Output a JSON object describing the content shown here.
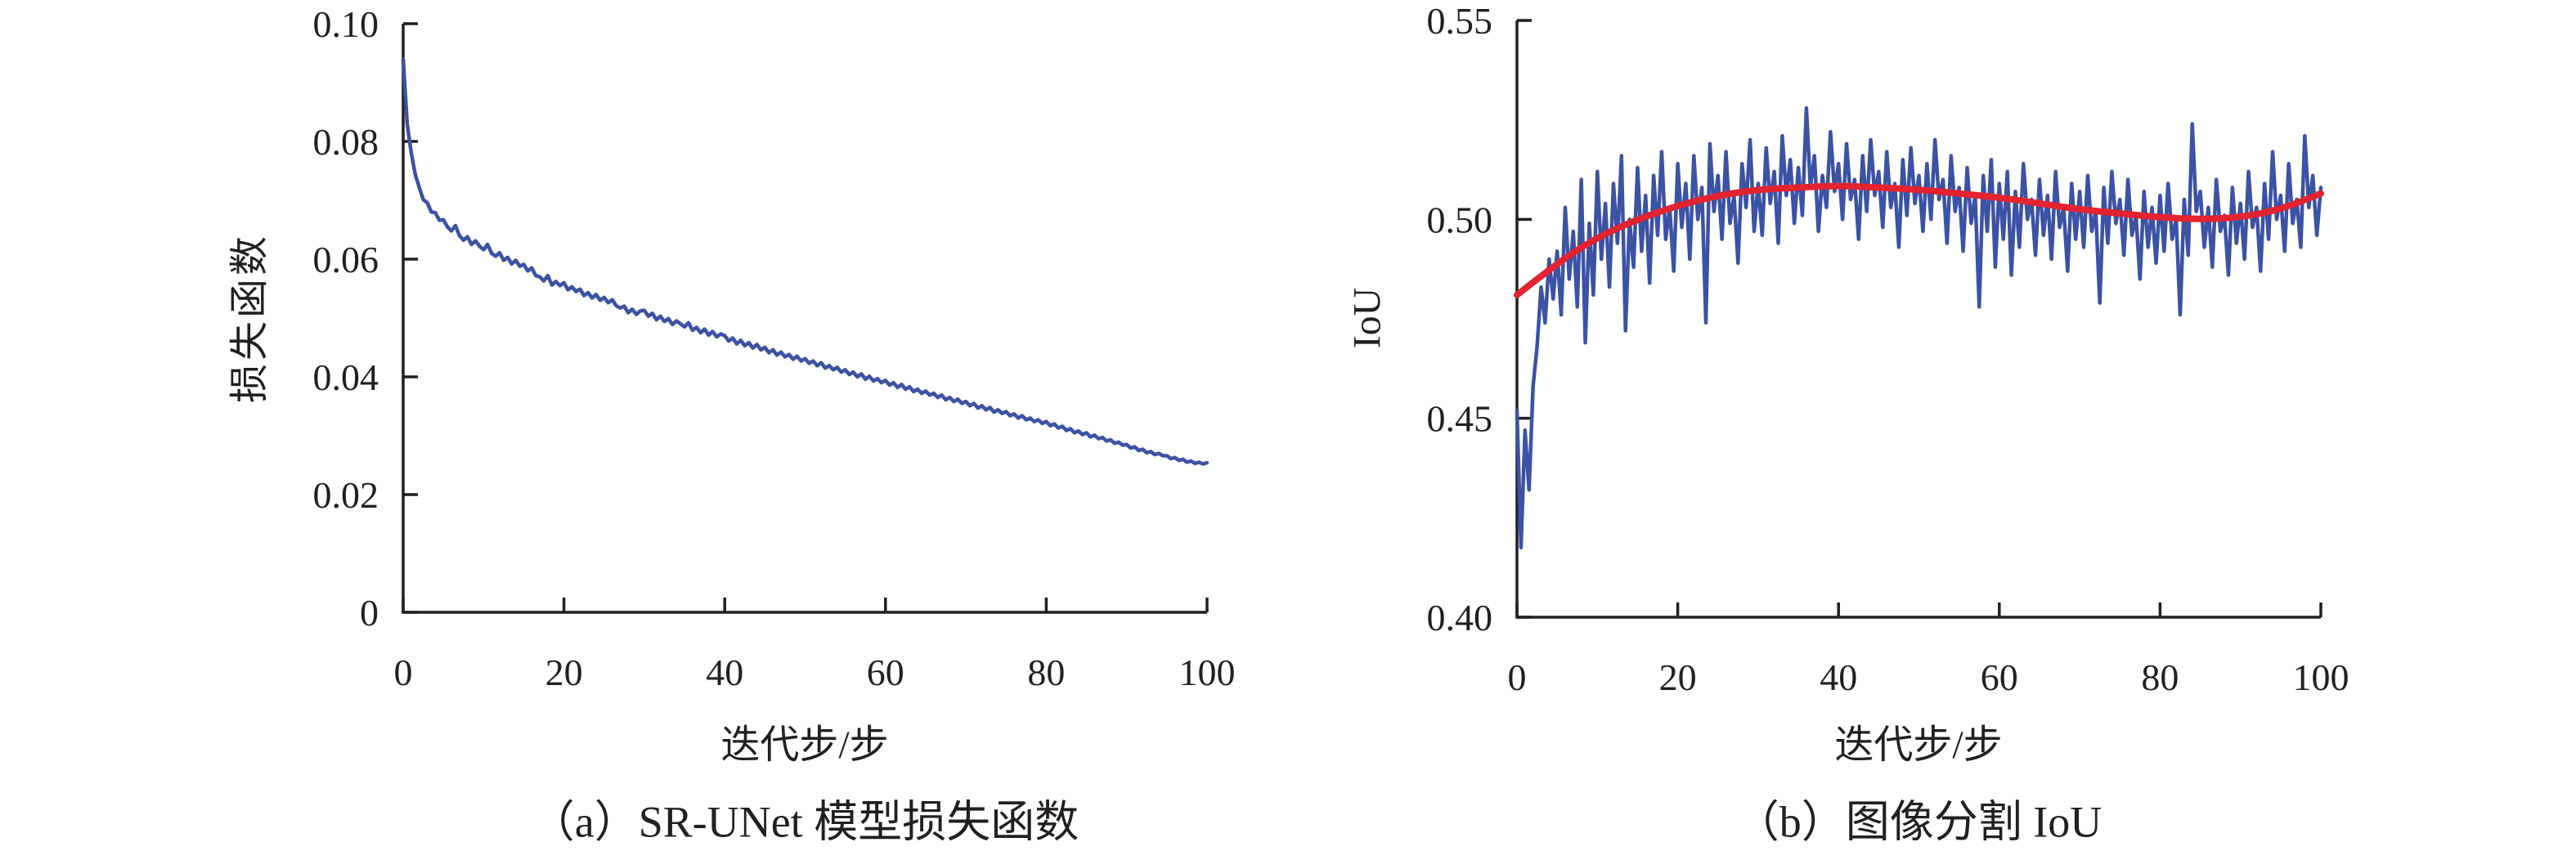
{
  "page": {
    "background": "#ffffff",
    "text_color": "#231f20"
  },
  "colors": {
    "series_blue": "#3b52a5",
    "trend_red": "#e32330",
    "axis": "#231f20"
  },
  "chart_data": [
    {
      "type": "line",
      "title": "（a）SR-UNet 模型损失函数",
      "xlabel": "迭代步/步",
      "ylabel": "损失函数",
      "xlim": [
        0,
        100
      ],
      "ylim": [
        0,
        0.1
      ],
      "grid": false,
      "legend": null,
      "xticks": {
        "values": [
          0,
          20,
          40,
          60,
          80,
          100
        ],
        "labels": [
          "0",
          "20",
          "40",
          "60",
          "80",
          "100"
        ]
      },
      "yticks": {
        "values": [
          0,
          0.02,
          0.04,
          0.06,
          0.08,
          0.1
        ],
        "labels": [
          "0",
          "0.02",
          "0.04",
          "0.06",
          "0.08",
          "0.10"
        ]
      },
      "series": [
        {
          "name": "loss",
          "color": "#3b52a5",
          "stroke_width": 4.5,
          "smooth": false,
          "x_start": 0,
          "x_step": 0.5,
          "values": [
            0.094,
            0.083,
            0.0781,
            0.0744,
            0.0722,
            0.0701,
            0.0696,
            0.068,
            0.0679,
            0.0666,
            0.0667,
            0.0655,
            0.0648,
            0.0657,
            0.064,
            0.0632,
            0.0638,
            0.0625,
            0.0631,
            0.0622,
            0.0616,
            0.0625,
            0.061,
            0.0605,
            0.0611,
            0.0598,
            0.0603,
            0.0592,
            0.0598,
            0.0588,
            0.0591,
            0.058,
            0.0585,
            0.0572,
            0.057,
            0.0563,
            0.0572,
            0.0556,
            0.0562,
            0.0555,
            0.056,
            0.0548,
            0.0553,
            0.0545,
            0.0549,
            0.0538,
            0.0543,
            0.0534,
            0.054,
            0.053,
            0.0535,
            0.0526,
            0.0531,
            0.0521,
            0.0517,
            0.052,
            0.0509,
            0.0515,
            0.0506,
            0.0512,
            0.0513,
            0.0503,
            0.0508,
            0.0497,
            0.0503,
            0.0494,
            0.0499,
            0.0489,
            0.0495,
            0.049,
            0.0485,
            0.0492,
            0.0479,
            0.0484,
            0.0475,
            0.0481,
            0.0471,
            0.0477,
            0.0468,
            0.0473,
            0.047,
            0.0461,
            0.0466,
            0.0456,
            0.0462,
            0.0453,
            0.0458,
            0.0449,
            0.0455,
            0.0446,
            0.045,
            0.0441,
            0.0446,
            0.0437,
            0.0442,
            0.0434,
            0.0438,
            0.043,
            0.0435,
            0.0427,
            0.0431,
            0.0423,
            0.0427,
            0.0419,
            0.0424,
            0.0415,
            0.0419,
            0.0412,
            0.0416,
            0.0408,
            0.0412,
            0.0404,
            0.0408,
            0.04,
            0.0405,
            0.0396,
            0.0401,
            0.0393,
            0.0397,
            0.039,
            0.0394,
            0.0386,
            0.039,
            0.0382,
            0.0387,
            0.0379,
            0.0383,
            0.0375,
            0.0379,
            0.0372,
            0.0376,
            0.0369,
            0.0372,
            0.0365,
            0.0369,
            0.0361,
            0.0365,
            0.0358,
            0.0362,
            0.0355,
            0.0358,
            0.0351,
            0.0355,
            0.0347,
            0.0351,
            0.0344,
            0.0348,
            0.034,
            0.0344,
            0.0338,
            0.0341,
            0.0334,
            0.0337,
            0.033,
            0.0334,
            0.0327,
            0.033,
            0.0324,
            0.0327,
            0.0321,
            0.0324,
            0.0317,
            0.032,
            0.0313,
            0.0316,
            0.0309,
            0.0312,
            0.0305,
            0.0308,
            0.0302,
            0.0305,
            0.0298,
            0.0301,
            0.0295,
            0.0297,
            0.0291,
            0.0293,
            0.0287,
            0.0289,
            0.0284,
            0.0285,
            0.0279,
            0.0281,
            0.0275,
            0.0277,
            0.0271,
            0.0273,
            0.0268,
            0.027,
            0.0266,
            0.0266,
            0.0261,
            0.0263,
            0.0258,
            0.026,
            0.0255,
            0.0257,
            0.0253,
            0.0255,
            0.0252,
            0.0254
          ]
        }
      ]
    },
    {
      "type": "line",
      "title": "（b）图像分割 IoU",
      "xlabel": "迭代步/步",
      "ylabel": "IoU",
      "xlim": [
        0,
        100
      ],
      "ylim": [
        0.4,
        0.55
      ],
      "grid": false,
      "legend": null,
      "xticks": {
        "values": [
          0,
          20,
          40,
          60,
          80,
          100
        ],
        "labels": [
          "0",
          "20",
          "40",
          "60",
          "80",
          "100"
        ]
      },
      "yticks": {
        "values": [
          0.4,
          0.45,
          0.5,
          0.55
        ],
        "labels": [
          "0.40",
          "0.45",
          "0.50",
          "0.55"
        ]
      },
      "series": [
        {
          "name": "iou",
          "color": "#3b52a5",
          "stroke_width": 4.5,
          "smooth": false,
          "x_start": 0,
          "x_step": 0.5,
          "values": [
            0.452,
            0.4175,
            0.447,
            0.432,
            0.458,
            0.468,
            0.483,
            0.474,
            0.49,
            0.48,
            0.492,
            0.476,
            0.503,
            0.485,
            0.497,
            0.478,
            0.51,
            0.469,
            0.499,
            0.481,
            0.512,
            0.49,
            0.504,
            0.483,
            0.509,
            0.494,
            0.516,
            0.472,
            0.5,
            0.488,
            0.513,
            0.492,
            0.506,
            0.484,
            0.511,
            0.496,
            0.517,
            0.495,
            0.503,
            0.487,
            0.514,
            0.498,
            0.509,
            0.49,
            0.516,
            0.5,
            0.508,
            0.474,
            0.519,
            0.502,
            0.511,
            0.495,
            0.517,
            0.499,
            0.506,
            0.489,
            0.514,
            0.503,
            0.52,
            0.497,
            0.509,
            0.496,
            0.518,
            0.504,
            0.512,
            0.494,
            0.521,
            0.506,
            0.515,
            0.499,
            0.513,
            0.501,
            0.528,
            0.508,
            0.516,
            0.497,
            0.511,
            0.503,
            0.522,
            0.507,
            0.514,
            0.5,
            0.519,
            0.505,
            0.51,
            0.495,
            0.516,
            0.502,
            0.52,
            0.506,
            0.512,
            0.498,
            0.517,
            0.503,
            0.509,
            0.493,
            0.515,
            0.501,
            0.518,
            0.504,
            0.511,
            0.497,
            0.514,
            0.5,
            0.52,
            0.505,
            0.51,
            0.494,
            0.516,
            0.502,
            0.508,
            0.492,
            0.513,
            0.499,
            0.506,
            0.478,
            0.511,
            0.497,
            0.515,
            0.488,
            0.509,
            0.495,
            0.512,
            0.486,
            0.507,
            0.493,
            0.514,
            0.5,
            0.505,
            0.491,
            0.51,
            0.496,
            0.506,
            0.49,
            0.512,
            0.498,
            0.503,
            0.487,
            0.509,
            0.495,
            0.507,
            0.493,
            0.511,
            0.497,
            0.502,
            0.479,
            0.508,
            0.494,
            0.512,
            0.499,
            0.505,
            0.491,
            0.51,
            0.496,
            0.501,
            0.485,
            0.507,
            0.493,
            0.503,
            0.489,
            0.506,
            0.492,
            0.509,
            0.495,
            0.5,
            0.476,
            0.505,
            0.491,
            0.524,
            0.502,
            0.507,
            0.493,
            0.503,
            0.488,
            0.51,
            0.497,
            0.501,
            0.486,
            0.508,
            0.494,
            0.504,
            0.49,
            0.512,
            0.498,
            0.503,
            0.487,
            0.509,
            0.495,
            0.517,
            0.5,
            0.506,
            0.492,
            0.514,
            0.499,
            0.505,
            0.493,
            0.521,
            0.503,
            0.511,
            0.496,
            0.508
          ]
        },
        {
          "name": "trend",
          "color": "#e32330",
          "stroke_width": 8,
          "smooth": true,
          "x_start": 0,
          "x_step": 5,
          "values": [
            0.481,
            0.489,
            0.4955,
            0.5,
            0.5035,
            0.506,
            0.5075,
            0.508,
            0.5085,
            0.508,
            0.5075,
            0.5065,
            0.5055,
            0.504,
            0.5025,
            0.5015,
            0.5005,
            0.5,
            0.5005,
            0.5025,
            0.5065
          ]
        }
      ]
    }
  ]
}
